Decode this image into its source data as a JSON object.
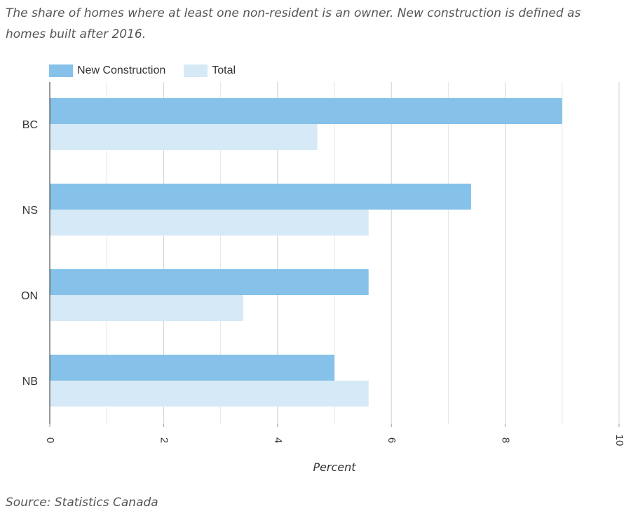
{
  "subtitle": "The share of homes where at least one non-resident is an owner. New construction is defined as homes built after 2016.",
  "source": "Source: Statistics Canada",
  "colors": {
    "new_construction": "#85c1e9",
    "total": "#d6e9f7",
    "grid": "#cccccc",
    "axis": "#333333"
  },
  "chart_data": {
    "type": "bar",
    "orientation": "horizontal",
    "categories": [
      "BC",
      "NS",
      "ON",
      "NB"
    ],
    "series": [
      {
        "name": "New Construction",
        "values": [
          9.0,
          7.4,
          5.6,
          5.0
        ]
      },
      {
        "name": "Total",
        "values": [
          4.7,
          5.6,
          3.4,
          5.6
        ]
      }
    ],
    "xlabel": "Percent",
    "ylabel": "",
    "xlim": [
      0,
      10
    ],
    "xticks": [
      "0",
      "2",
      "4",
      "6",
      "8",
      "10"
    ],
    "grid": true,
    "legend_position": "top-left"
  }
}
